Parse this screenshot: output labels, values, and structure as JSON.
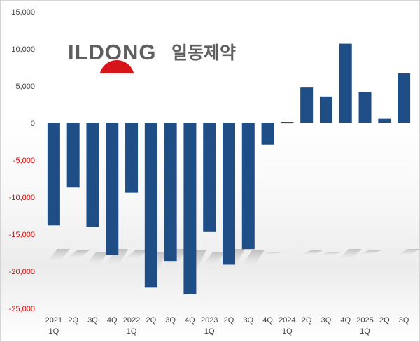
{
  "logo": {
    "wordmark": "ILDONG",
    "korean": "일동제약",
    "accent_color": "#d7141a"
  },
  "chart_data": {
    "type": "bar",
    "title": "",
    "xlabel": "",
    "ylabel": "",
    "ylim": [
      -25000,
      15000
    ],
    "yticks": [
      15000,
      10000,
      5000,
      0,
      -5000,
      -10000,
      -15000,
      -20000,
      -25000
    ],
    "ytick_labels": [
      "15,000",
      "10,000",
      "5,000",
      "0",
      "-5,000",
      "-10,000",
      "-15,000",
      "-20,000",
      "-25,000"
    ],
    "positive_tick_color": "#404040",
    "negative_tick_color": "#e00000",
    "bar_color": "#1f4e87",
    "categories": [
      "2021 1Q",
      "2Q",
      "3Q",
      "4Q",
      "2022 1Q",
      "2Q",
      "3Q",
      "4Q",
      "2023 1Q",
      "2Q",
      "3Q",
      "4Q",
      "2024 1Q",
      "2Q",
      "3Q",
      "4Q",
      "2025 1Q",
      "2Q",
      "3Q"
    ],
    "category_lines": [
      [
        "2021",
        "1Q"
      ],
      [
        "2Q"
      ],
      [
        "3Q"
      ],
      [
        "4Q"
      ],
      [
        "2022",
        "1Q"
      ],
      [
        "2Q"
      ],
      [
        "3Q"
      ],
      [
        "4Q"
      ],
      [
        "2023",
        "1Q"
      ],
      [
        "2Q"
      ],
      [
        "3Q"
      ],
      [
        "4Q"
      ],
      [
        "2024",
        "1Q"
      ],
      [
        "2Q"
      ],
      [
        "3Q"
      ],
      [
        "4Q"
      ],
      [
        "2025",
        "1Q"
      ],
      [
        "2Q"
      ],
      [
        "3Q"
      ]
    ],
    "values": [
      -13800,
      -8700,
      -14000,
      -17800,
      -9400,
      -22200,
      -18600,
      -23100,
      -14700,
      -19100,
      -17000,
      -2900,
      100,
      4800,
      3600,
      10700,
      4200,
      600,
      6700
    ]
  }
}
